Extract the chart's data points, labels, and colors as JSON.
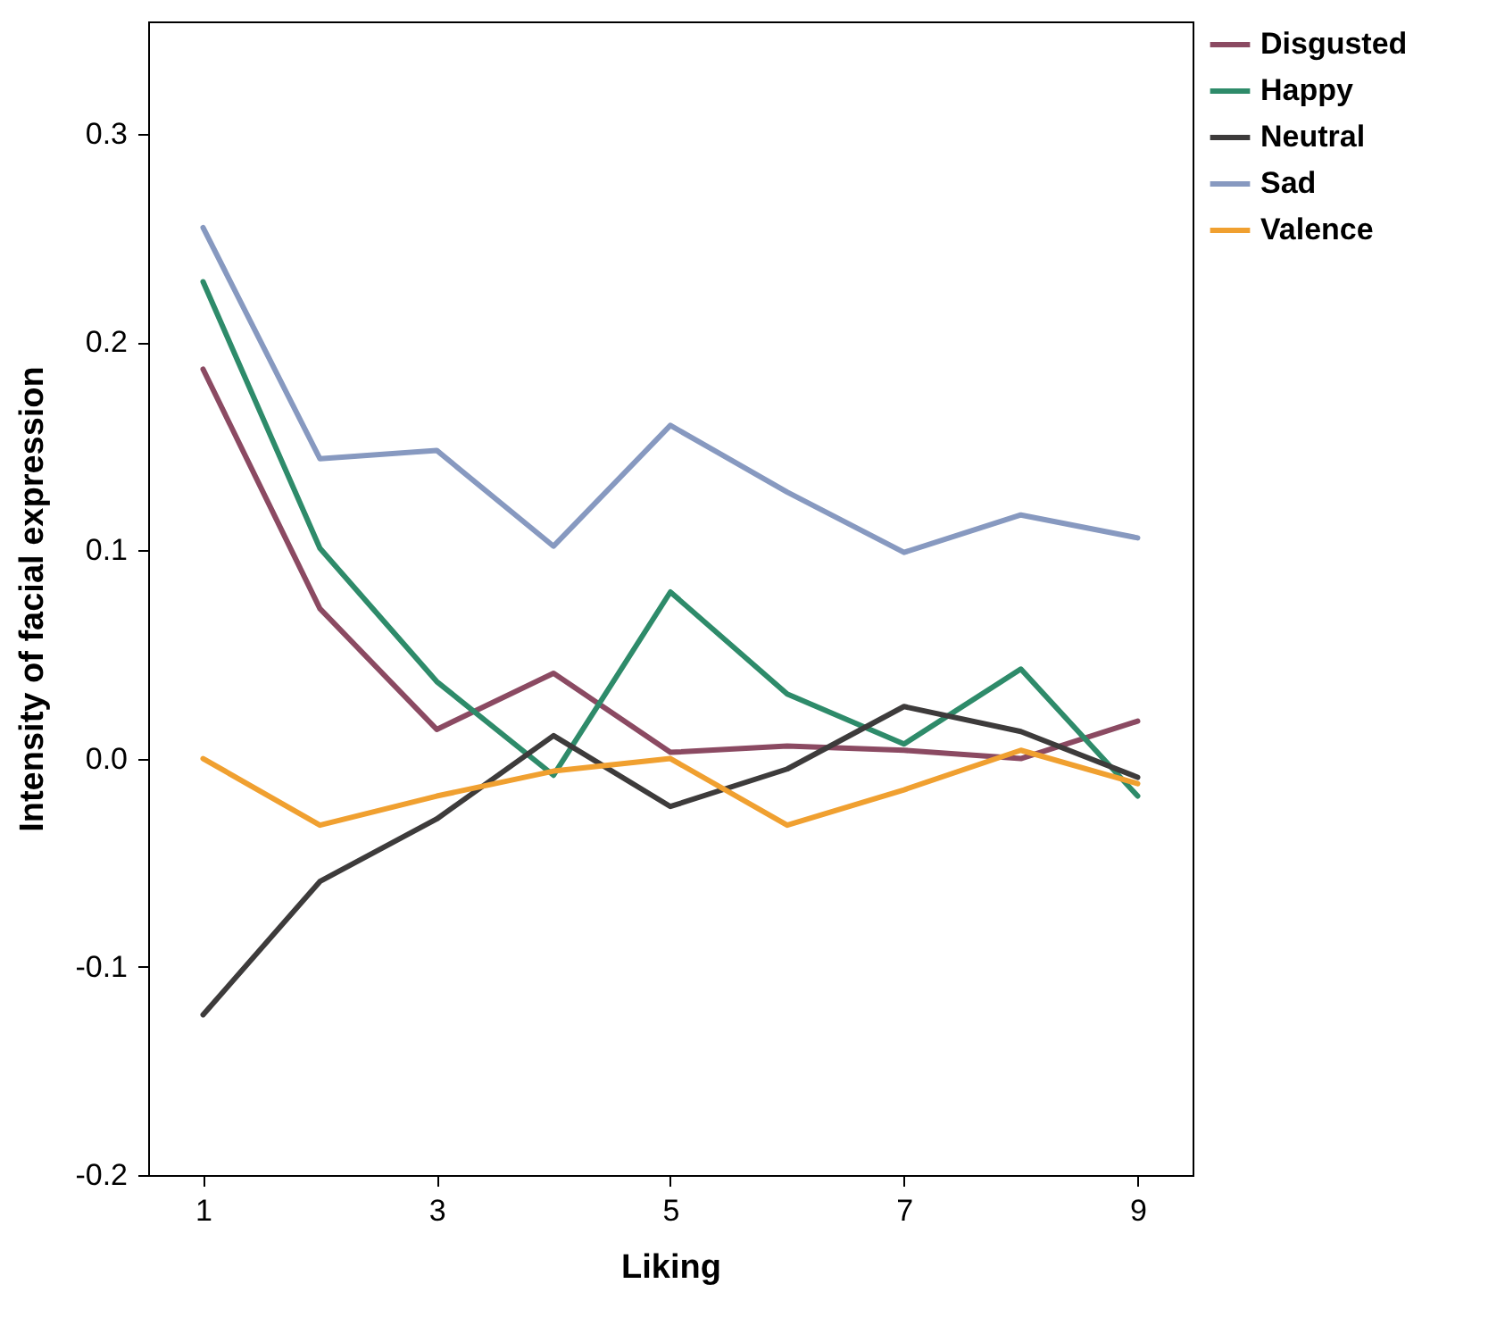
{
  "chart_data": {
    "type": "line",
    "xlabel": "Liking",
    "ylabel": "Intensity of facial expression",
    "x": [
      1,
      2,
      3,
      4,
      5,
      6,
      7,
      8,
      9
    ],
    "series": [
      {
        "name": "Disgusted",
        "color": "#8b4a62",
        "values": [
          0.187,
          0.072,
          0.014,
          0.041,
          0.003,
          0.006,
          0.004,
          0.0,
          0.018
        ]
      },
      {
        "name": "Happy",
        "color": "#2e8b6a",
        "values": [
          0.229,
          0.101,
          0.037,
          -0.008,
          0.08,
          0.031,
          0.007,
          0.043,
          -0.018
        ]
      },
      {
        "name": "Neutral",
        "color": "#3d3b3b",
        "values": [
          -0.123,
          -0.059,
          -0.029,
          0.011,
          -0.023,
          -0.005,
          0.025,
          0.013,
          -0.009
        ]
      },
      {
        "name": "Sad",
        "color": "#8799c0",
        "values": [
          0.255,
          0.144,
          0.148,
          0.102,
          0.16,
          0.128,
          0.099,
          0.117,
          0.106
        ]
      },
      {
        "name": "Valence",
        "color": "#f0a030",
        "values": [
          0.0,
          -0.032,
          -0.018,
          -0.006,
          0.0,
          -0.032,
          -0.015,
          0.004,
          -0.012
        ]
      }
    ],
    "xlim": [
      0.53,
      9.47
    ],
    "xticks": [
      1,
      3,
      5,
      7,
      9
    ],
    "ylim": [
      -0.2,
      0.354
    ],
    "yticks": [
      -0.2,
      -0.1,
      {
        "value": 0,
        "label": "0.0"
      },
      0.1,
      0.2,
      0.3
    ],
    "grid": false,
    "legend": "top right",
    "marker": "none",
    "line_style": "solid"
  }
}
